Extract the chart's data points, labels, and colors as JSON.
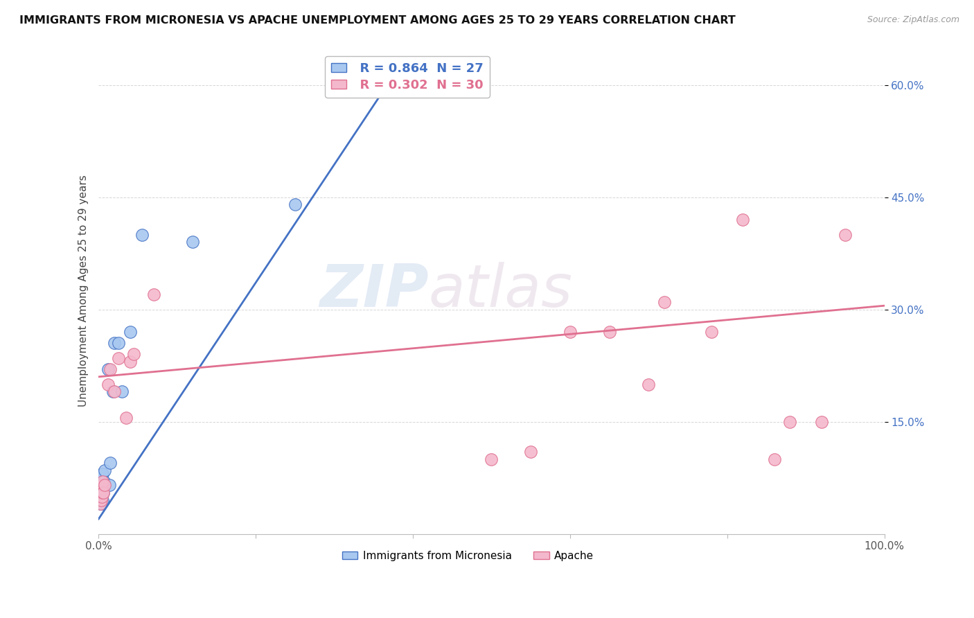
{
  "title": "IMMIGRANTS FROM MICRONESIA VS APACHE UNEMPLOYMENT AMONG AGES 25 TO 29 YEARS CORRELATION CHART",
  "source": "Source: ZipAtlas.com",
  "ylabel": "Unemployment Among Ages 25 to 29 years",
  "xlim": [
    0,
    1.0
  ],
  "ylim": [
    0,
    0.65
  ],
  "xticks": [
    0.0,
    0.2,
    0.4,
    0.6,
    0.8,
    1.0
  ],
  "xticklabels": [
    "0.0%",
    "",
    "",
    "",
    "",
    "100.0%"
  ],
  "yticks": [
    0.15,
    0.3,
    0.45,
    0.6
  ],
  "yticklabels": [
    "15.0%",
    "30.0%",
    "45.0%",
    "60.0%"
  ],
  "legend_blue_label": "Immigrants from Micronesia",
  "legend_pink_label": "Apache",
  "r_blue": "R = 0.864",
  "n_blue": "N = 27",
  "r_pink": "R = 0.302",
  "n_pink": "N = 30",
  "blue_fill": "#a8c8f0",
  "pink_fill": "#f4b8cc",
  "line_blue": "#4472c4",
  "line_pink": "#e07090",
  "watermark_zip": "ZIP",
  "watermark_atlas": "atlas",
  "blue_scatter_x": [
    0.002,
    0.002,
    0.002,
    0.003,
    0.003,
    0.003,
    0.004,
    0.004,
    0.004,
    0.005,
    0.005,
    0.005,
    0.006,
    0.006,
    0.007,
    0.008,
    0.012,
    0.014,
    0.015,
    0.018,
    0.02,
    0.025,
    0.03,
    0.04,
    0.055,
    0.12,
    0.25
  ],
  "blue_scatter_y": [
    0.04,
    0.05,
    0.06,
    0.04,
    0.055,
    0.07,
    0.05,
    0.06,
    0.08,
    0.045,
    0.06,
    0.08,
    0.055,
    0.07,
    0.07,
    0.085,
    0.22,
    0.065,
    0.095,
    0.19,
    0.255,
    0.255,
    0.19,
    0.27,
    0.4,
    0.39,
    0.44
  ],
  "pink_scatter_x": [
    0.002,
    0.002,
    0.003,
    0.003,
    0.004,
    0.004,
    0.005,
    0.005,
    0.006,
    0.008,
    0.012,
    0.015,
    0.02,
    0.025,
    0.035,
    0.04,
    0.045,
    0.07,
    0.5,
    0.55,
    0.6,
    0.65,
    0.7,
    0.72,
    0.78,
    0.82,
    0.86,
    0.88,
    0.92,
    0.95
  ],
  "pink_scatter_y": [
    0.04,
    0.055,
    0.045,
    0.065,
    0.05,
    0.065,
    0.055,
    0.07,
    0.055,
    0.065,
    0.2,
    0.22,
    0.19,
    0.235,
    0.155,
    0.23,
    0.24,
    0.32,
    0.1,
    0.11,
    0.27,
    0.27,
    0.2,
    0.31,
    0.27,
    0.42,
    0.1,
    0.15,
    0.15,
    0.4
  ],
  "blue_line_x": [
    0.0,
    0.38
  ],
  "blue_line_y": [
    0.02,
    0.62
  ],
  "pink_line_x": [
    0.0,
    1.0
  ],
  "pink_line_y": [
    0.21,
    0.305
  ]
}
